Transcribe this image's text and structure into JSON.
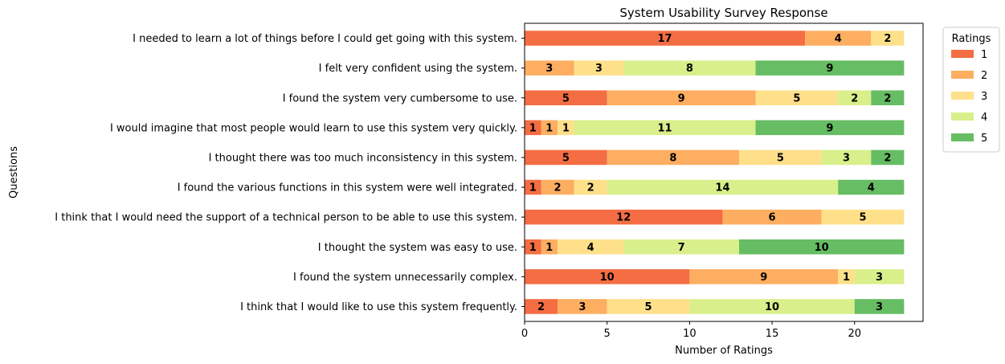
{
  "chart_data": {
    "type": "bar",
    "orientation": "horizontal",
    "stacked": true,
    "title": "System Usability Survey Response",
    "xlabel": "Number of Ratings",
    "ylabel": "Questions",
    "xlim": [
      0,
      24.15
    ],
    "xticks": [
      0,
      5,
      10,
      15,
      20
    ],
    "grid": false,
    "legend_title": "Ratings",
    "legend_position": "outside-top-right",
    "categories": [
      "I needed to learn a lot of things before I could get going with this system.",
      "I felt very confident using the system.",
      "I found the system very cumbersome to use.",
      "I would imagine that most people would learn to use this system very quickly.",
      "I thought there was too much inconsistency in this system.",
      "I found the various functions in this system were well integrated.",
      "I think that I would need the support of a technical person to be able to use this system.",
      "I thought the system was easy to use.",
      "I found the system unnecessarily complex.",
      "I think that I would like to use this system frequently."
    ],
    "series": [
      {
        "name": "1",
        "color": "#f46d43",
        "values": [
          17,
          0,
          5,
          1,
          5,
          1,
          12,
          1,
          10,
          2
        ]
      },
      {
        "name": "2",
        "color": "#fdae61",
        "values": [
          4,
          3,
          9,
          1,
          8,
          2,
          6,
          1,
          9,
          3
        ]
      },
      {
        "name": "3",
        "color": "#fee08b",
        "values": [
          2,
          3,
          5,
          1,
          5,
          2,
          5,
          4,
          1,
          5
        ]
      },
      {
        "name": "4",
        "color": "#d9ef8b",
        "values": [
          0,
          8,
          2,
          11,
          3,
          14,
          0,
          7,
          3,
          10
        ]
      },
      {
        "name": "5",
        "color": "#66bd63",
        "values": [
          0,
          9,
          2,
          9,
          2,
          4,
          0,
          10,
          0,
          3
        ]
      }
    ]
  }
}
